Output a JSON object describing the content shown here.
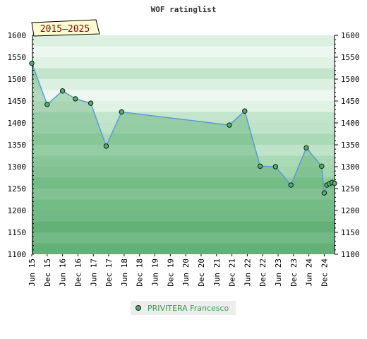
{
  "chart_data": {
    "type": "area",
    "title": "WOF ratinglist",
    "badge": "2015–2025",
    "ylim": [
      1100,
      1600
    ],
    "yticks": [
      1100,
      1150,
      1200,
      1250,
      1300,
      1350,
      1400,
      1450,
      1500,
      1550,
      1600
    ],
    "xtick_labels": [
      "Jun 15",
      "Dec 15",
      "Jun 16",
      "Dec 16",
      "Jun 17",
      "Dec 17",
      "Jun 18",
      "Dec 18",
      "Jun 19",
      "Dec 19",
      "Jun 20",
      "Dec 20",
      "Jun 21",
      "Dec 21",
      "Jun 22",
      "Dec 22",
      "Jun 23",
      "Dec 23",
      "Jun 24",
      "Dec 24"
    ],
    "grid": true,
    "legend_position": "bottom",
    "series": [
      {
        "name": "PRIVITERA Francesco",
        "color": "#5b9bd5",
        "points": [
          {
            "x": "2015-06",
            "y": 1536
          },
          {
            "x": "2015-12",
            "y": 1442
          },
          {
            "x": "2016-06",
            "y": 1473
          },
          {
            "x": "2016-11",
            "y": 1455
          },
          {
            "x": "2017-05",
            "y": 1445
          },
          {
            "x": "2017-11",
            "y": 1347
          },
          {
            "x": "2018-05",
            "y": 1425
          },
          {
            "x": "2021-11",
            "y": 1395
          },
          {
            "x": "2022-05",
            "y": 1427
          },
          {
            "x": "2022-11",
            "y": 1301
          },
          {
            "x": "2023-05",
            "y": 1300
          },
          {
            "x": "2023-11",
            "y": 1258
          },
          {
            "x": "2024-05",
            "y": 1343
          },
          {
            "x": "2024-11",
            "y": 1301
          },
          {
            "x": "2024-12",
            "y": 1240
          },
          {
            "x": "2025-01",
            "y": 1258
          },
          {
            "x": "2025-02",
            "y": 1261
          },
          {
            "x": "2025-03",
            "y": 1264
          },
          {
            "x": "2025-04",
            "y": 1262
          }
        ]
      }
    ]
  }
}
